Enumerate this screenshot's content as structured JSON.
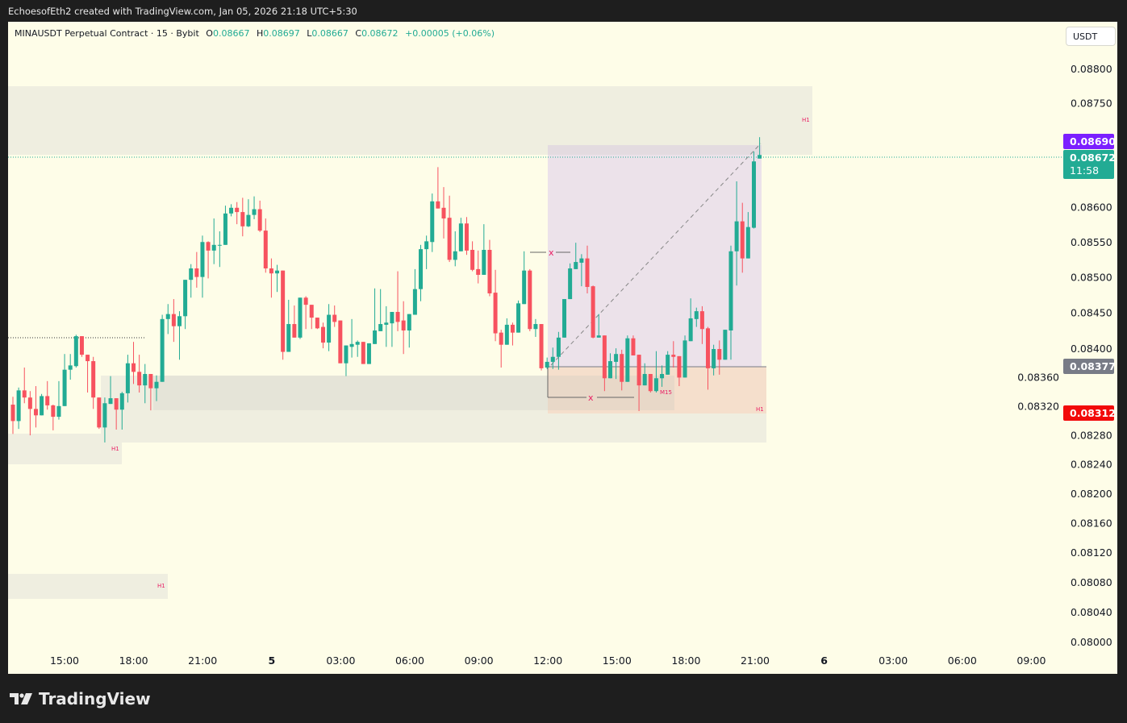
{
  "credit": "EchoesofEth2 created with TradingView.com, Jan 05, 2026 21:18 UTC+5:30",
  "legend": {
    "symbol": "MINAUSDT Perpetual Contract · 15 · Bybit",
    "o_label": "O",
    "o": "0.08667",
    "h_label": "H",
    "h": "0.08697",
    "l_label": "L",
    "l": "0.08667",
    "c_label": "C",
    "c": "0.08672",
    "change": "+0.00005 (+0.06%)"
  },
  "currency_button": "USDT",
  "colors": {
    "up": "#22ab94",
    "down": "#f7525f",
    "background": "#fefde8",
    "frame": "#1e1e1e"
  },
  "price_axis": [
    "0.08800",
    "0.08750",
    "0.08600",
    "0.08550",
    "0.08500",
    "0.08450",
    "0.08400",
    "0.08360",
    "0.08320",
    "0.08280",
    "0.08240",
    "0.08200",
    "0.08160",
    "0.08120",
    "0.08080",
    "0.08040",
    "0.08000"
  ],
  "price_tags": {
    "target": {
      "value": "0.08690",
      "color": "#7b1fff"
    },
    "last": {
      "value": "0.08672",
      "countdown": "11:58",
      "color": "#22ab94"
    },
    "entry": {
      "value": "0.08377",
      "color": "#787b86"
    },
    "stop": {
      "value": "0.08312",
      "color": "#f20a0a"
    }
  },
  "time_axis": [
    "15:00",
    "18:00",
    "21:00",
    "5",
    "03:00",
    "06:00",
    "09:00",
    "12:00",
    "15:00",
    "18:00",
    "21:00",
    "6",
    "03:00",
    "06:00",
    "09:00"
  ],
  "zone_labels": {
    "h1": "H1",
    "m15": "M15",
    "x": "x"
  },
  "logo_text": "TradingView",
  "chart_data": {
    "type": "candlestick",
    "symbol": "MINAUSDT",
    "interval": "15",
    "ylim": [
      0.08,
      0.088
    ],
    "ohlc": [
      [
        0.08322,
        0.08333,
        0.08281,
        0.08299
      ],
      [
        0.08299,
        0.08346,
        0.08288,
        0.08342
      ],
      [
        0.08342,
        0.08374,
        0.08324,
        0.08332
      ],
      [
        0.08332,
        0.08341,
        0.08279,
        0.08316
      ],
      [
        0.08316,
        0.08348,
        0.0829,
        0.08307
      ],
      [
        0.08307,
        0.08337,
        0.08307,
        0.08334
      ],
      [
        0.08334,
        0.08355,
        0.08315,
        0.08321
      ],
      [
        0.08321,
        0.08322,
        0.08286,
        0.08305
      ],
      [
        0.08305,
        0.08355,
        0.08301,
        0.0832
      ],
      [
        0.0832,
        0.08393,
        0.0832,
        0.08371
      ],
      [
        0.08371,
        0.08393,
        0.08357,
        0.08377
      ],
      [
        0.08376,
        0.0842,
        0.08374,
        0.08418
      ],
      [
        0.08418,
        0.08418,
        0.08389,
        0.08392
      ],
      [
        0.08392,
        0.08392,
        0.08339,
        0.08383
      ],
      [
        0.08383,
        0.08389,
        0.08316,
        0.08332
      ],
      [
        0.08332,
        0.08332,
        0.08288,
        0.0829
      ],
      [
        0.0829,
        0.08332,
        0.08269,
        0.08324
      ],
      [
        0.08323,
        0.08362,
        0.08323,
        0.08331
      ],
      [
        0.08331,
        0.08331,
        0.08287,
        0.08315
      ],
      [
        0.08315,
        0.0834,
        0.08287,
        0.08338
      ],
      [
        0.08338,
        0.08392,
        0.08325,
        0.0838
      ],
      [
        0.0838,
        0.0841,
        0.08351,
        0.08368
      ],
      [
        0.08368,
        0.08392,
        0.08339,
        0.08349
      ],
      [
        0.08349,
        0.08379,
        0.08324,
        0.08365
      ],
      [
        0.08365,
        0.08365,
        0.08314,
        0.08345
      ],
      [
        0.08345,
        0.08363,
        0.08327,
        0.08354
      ],
      [
        0.08354,
        0.08448,
        0.08354,
        0.08442
      ],
      [
        0.08442,
        0.08463,
        0.08421,
        0.08449
      ],
      [
        0.08449,
        0.0847,
        0.0841,
        0.08432
      ],
      [
        0.08432,
        0.08453,
        0.08385,
        0.08446
      ],
      [
        0.08446,
        0.08497,
        0.08428,
        0.08497
      ],
      [
        0.08497,
        0.08519,
        0.08472,
        0.08513
      ],
      [
        0.08513,
        0.08536,
        0.08486,
        0.08501
      ],
      [
        0.08501,
        0.08559,
        0.08472,
        0.0855
      ],
      [
        0.0855,
        0.08551,
        0.08499,
        0.08538
      ],
      [
        0.08538,
        0.08583,
        0.08519,
        0.08546
      ],
      [
        0.08545,
        0.08565,
        0.08515,
        0.08546
      ],
      [
        0.08546,
        0.08601,
        0.08546,
        0.0859
      ],
      [
        0.0859,
        0.08603,
        0.08586,
        0.08598
      ],
      [
        0.08598,
        0.08606,
        0.08575,
        0.08592
      ],
      [
        0.08592,
        0.08612,
        0.08558,
        0.08572
      ],
      [
        0.08572,
        0.0861,
        0.08571,
        0.08588
      ],
      [
        0.08588,
        0.08614,
        0.08582,
        0.08596
      ],
      [
        0.08596,
        0.08608,
        0.08564,
        0.08566
      ],
      [
        0.08566,
        0.08583,
        0.08507,
        0.08513
      ],
      [
        0.08513,
        0.08527,
        0.08472,
        0.08506
      ],
      [
        0.08506,
        0.08518,
        0.0848,
        0.0851
      ],
      [
        0.0851,
        0.0851,
        0.08385,
        0.08396
      ],
      [
        0.08396,
        0.08469,
        0.08396,
        0.08435
      ],
      [
        0.08435,
        0.08461,
        0.08416,
        0.08416
      ],
      [
        0.08416,
        0.08472,
        0.08414,
        0.08472
      ],
      [
        0.08472,
        0.08474,
        0.08428,
        0.08462
      ],
      [
        0.08462,
        0.08462,
        0.08428,
        0.08444
      ],
      [
        0.08444,
        0.08444,
        0.08428,
        0.08429
      ],
      [
        0.08431,
        0.08437,
        0.08401,
        0.08409
      ],
      [
        0.08409,
        0.08463,
        0.08397,
        0.08448
      ],
      [
        0.08448,
        0.08461,
        0.08431,
        0.08438
      ],
      [
        0.0844,
        0.0844,
        0.0838,
        0.0838
      ],
      [
        0.0838,
        0.08405,
        0.08362,
        0.08405
      ],
      [
        0.08403,
        0.08442,
        0.08388,
        0.08407
      ],
      [
        0.08406,
        0.08412,
        0.08389,
        0.0841
      ],
      [
        0.0841,
        0.0841,
        0.08379,
        0.08379
      ],
      [
        0.08379,
        0.08408,
        0.08379,
        0.08408
      ],
      [
        0.08407,
        0.08485,
        0.08407,
        0.08426
      ],
      [
        0.08425,
        0.08484,
        0.08425,
        0.08435
      ],
      [
        0.08434,
        0.0846,
        0.08403,
        0.08437
      ],
      [
        0.08436,
        0.08452,
        0.08403,
        0.08452
      ],
      [
        0.08452,
        0.08509,
        0.08425,
        0.08438
      ],
      [
        0.0844,
        0.08467,
        0.08393,
        0.08426
      ],
      [
        0.08426,
        0.08449,
        0.08402,
        0.08449
      ],
      [
        0.08448,
        0.08512,
        0.08448,
        0.08484
      ],
      [
        0.08484,
        0.08546,
        0.08467,
        0.0854
      ],
      [
        0.0854,
        0.08559,
        0.08512,
        0.08551
      ],
      [
        0.0855,
        0.08618,
        0.08536,
        0.08607
      ],
      [
        0.08607,
        0.08655,
        0.08597,
        0.08597
      ],
      [
        0.08598,
        0.08627,
        0.08555,
        0.08583
      ],
      [
        0.08584,
        0.08615,
        0.08522,
        0.08525
      ],
      [
        0.08525,
        0.08565,
        0.08516,
        0.08537
      ],
      [
        0.08537,
        0.08584,
        0.08537,
        0.08576
      ],
      [
        0.08576,
        0.08585,
        0.08532,
        0.08538
      ],
      [
        0.08539,
        0.08551,
        0.08509,
        0.08511
      ],
      [
        0.08512,
        0.08538,
        0.08492,
        0.08504
      ],
      [
        0.08504,
        0.08575,
        0.08504,
        0.08539
      ],
      [
        0.08539,
        0.08553,
        0.08474,
        0.08478
      ],
      [
        0.08479,
        0.08511,
        0.08411,
        0.08422
      ],
      [
        0.08423,
        0.08427,
        0.08374,
        0.08406
      ],
      [
        0.08406,
        0.08443,
        0.08406,
        0.08434
      ],
      [
        0.08434,
        0.08437,
        0.08405,
        0.08423
      ],
      [
        0.08423,
        0.08468,
        0.08423,
        0.08464
      ],
      [
        0.08463,
        0.08537,
        0.08463,
        0.0851
      ],
      [
        0.0851,
        0.08512,
        0.08425,
        0.08428
      ],
      [
        0.08428,
        0.08442,
        0.08417,
        0.08435
      ],
      [
        0.08435,
        0.08435,
        0.0837,
        0.08373
      ],
      [
        0.08374,
        0.08388,
        0.08372,
        0.08382
      ],
      [
        0.08382,
        0.08402,
        0.08372,
        0.08389
      ],
      [
        0.08389,
        0.08424,
        0.08371,
        0.08416
      ],
      [
        0.08416,
        0.0847,
        0.08416,
        0.0847
      ],
      [
        0.0847,
        0.0852,
        0.0847,
        0.08513
      ],
      [
        0.08512,
        0.08549,
        0.08512,
        0.08522
      ],
      [
        0.08521,
        0.08533,
        0.08488,
        0.08527
      ],
      [
        0.08527,
        0.08545,
        0.08478,
        0.08487
      ],
      [
        0.08488,
        0.08489,
        0.08415,
        0.08416
      ],
      [
        0.08416,
        0.08449,
        0.08416,
        0.08419
      ],
      [
        0.08419,
        0.08419,
        0.08341,
        0.08359
      ],
      [
        0.08359,
        0.08394,
        0.08359,
        0.08383
      ],
      [
        0.08382,
        0.08401,
        0.08358,
        0.08393
      ],
      [
        0.08393,
        0.08399,
        0.08342,
        0.08354
      ],
      [
        0.08354,
        0.08419,
        0.08354,
        0.08415
      ],
      [
        0.08415,
        0.08419,
        0.08391,
        0.08391
      ],
      [
        0.08392,
        0.08392,
        0.08313,
        0.08349
      ],
      [
        0.08349,
        0.0838,
        0.08349,
        0.08365
      ],
      [
        0.08365,
        0.08365,
        0.08339,
        0.08341
      ],
      [
        0.08341,
        0.08397,
        0.08339,
        0.08359
      ],
      [
        0.08359,
        0.08377,
        0.08347,
        0.08365
      ],
      [
        0.08364,
        0.08397,
        0.08364,
        0.08392
      ],
      [
        0.08392,
        0.08411,
        0.08374,
        0.08389
      ],
      [
        0.0839,
        0.0839,
        0.08348,
        0.0836
      ],
      [
        0.0836,
        0.08419,
        0.0836,
        0.08412
      ],
      [
        0.08411,
        0.08471,
        0.08411,
        0.08443
      ],
      [
        0.08442,
        0.08458,
        0.08431,
        0.08453
      ],
      [
        0.08453,
        0.0846,
        0.08407,
        0.08428
      ],
      [
        0.08429,
        0.08431,
        0.08343,
        0.08373
      ],
      [
        0.08373,
        0.08406,
        0.08363,
        0.084
      ],
      [
        0.084,
        0.08412,
        0.08364,
        0.08385
      ],
      [
        0.08385,
        0.08427,
        0.08385,
        0.08427
      ],
      [
        0.08426,
        0.08545,
        0.08385,
        0.08537
      ],
      [
        0.08537,
        0.08635,
        0.08489,
        0.08579
      ],
      [
        0.08579,
        0.08605,
        0.08507,
        0.08527
      ],
      [
        0.08527,
        0.08592,
        0.08527,
        0.08571
      ],
      [
        0.0857,
        0.08677,
        0.08569,
        0.08663
      ],
      [
        0.08667,
        0.08697,
        0.08667,
        0.08672
      ]
    ]
  }
}
